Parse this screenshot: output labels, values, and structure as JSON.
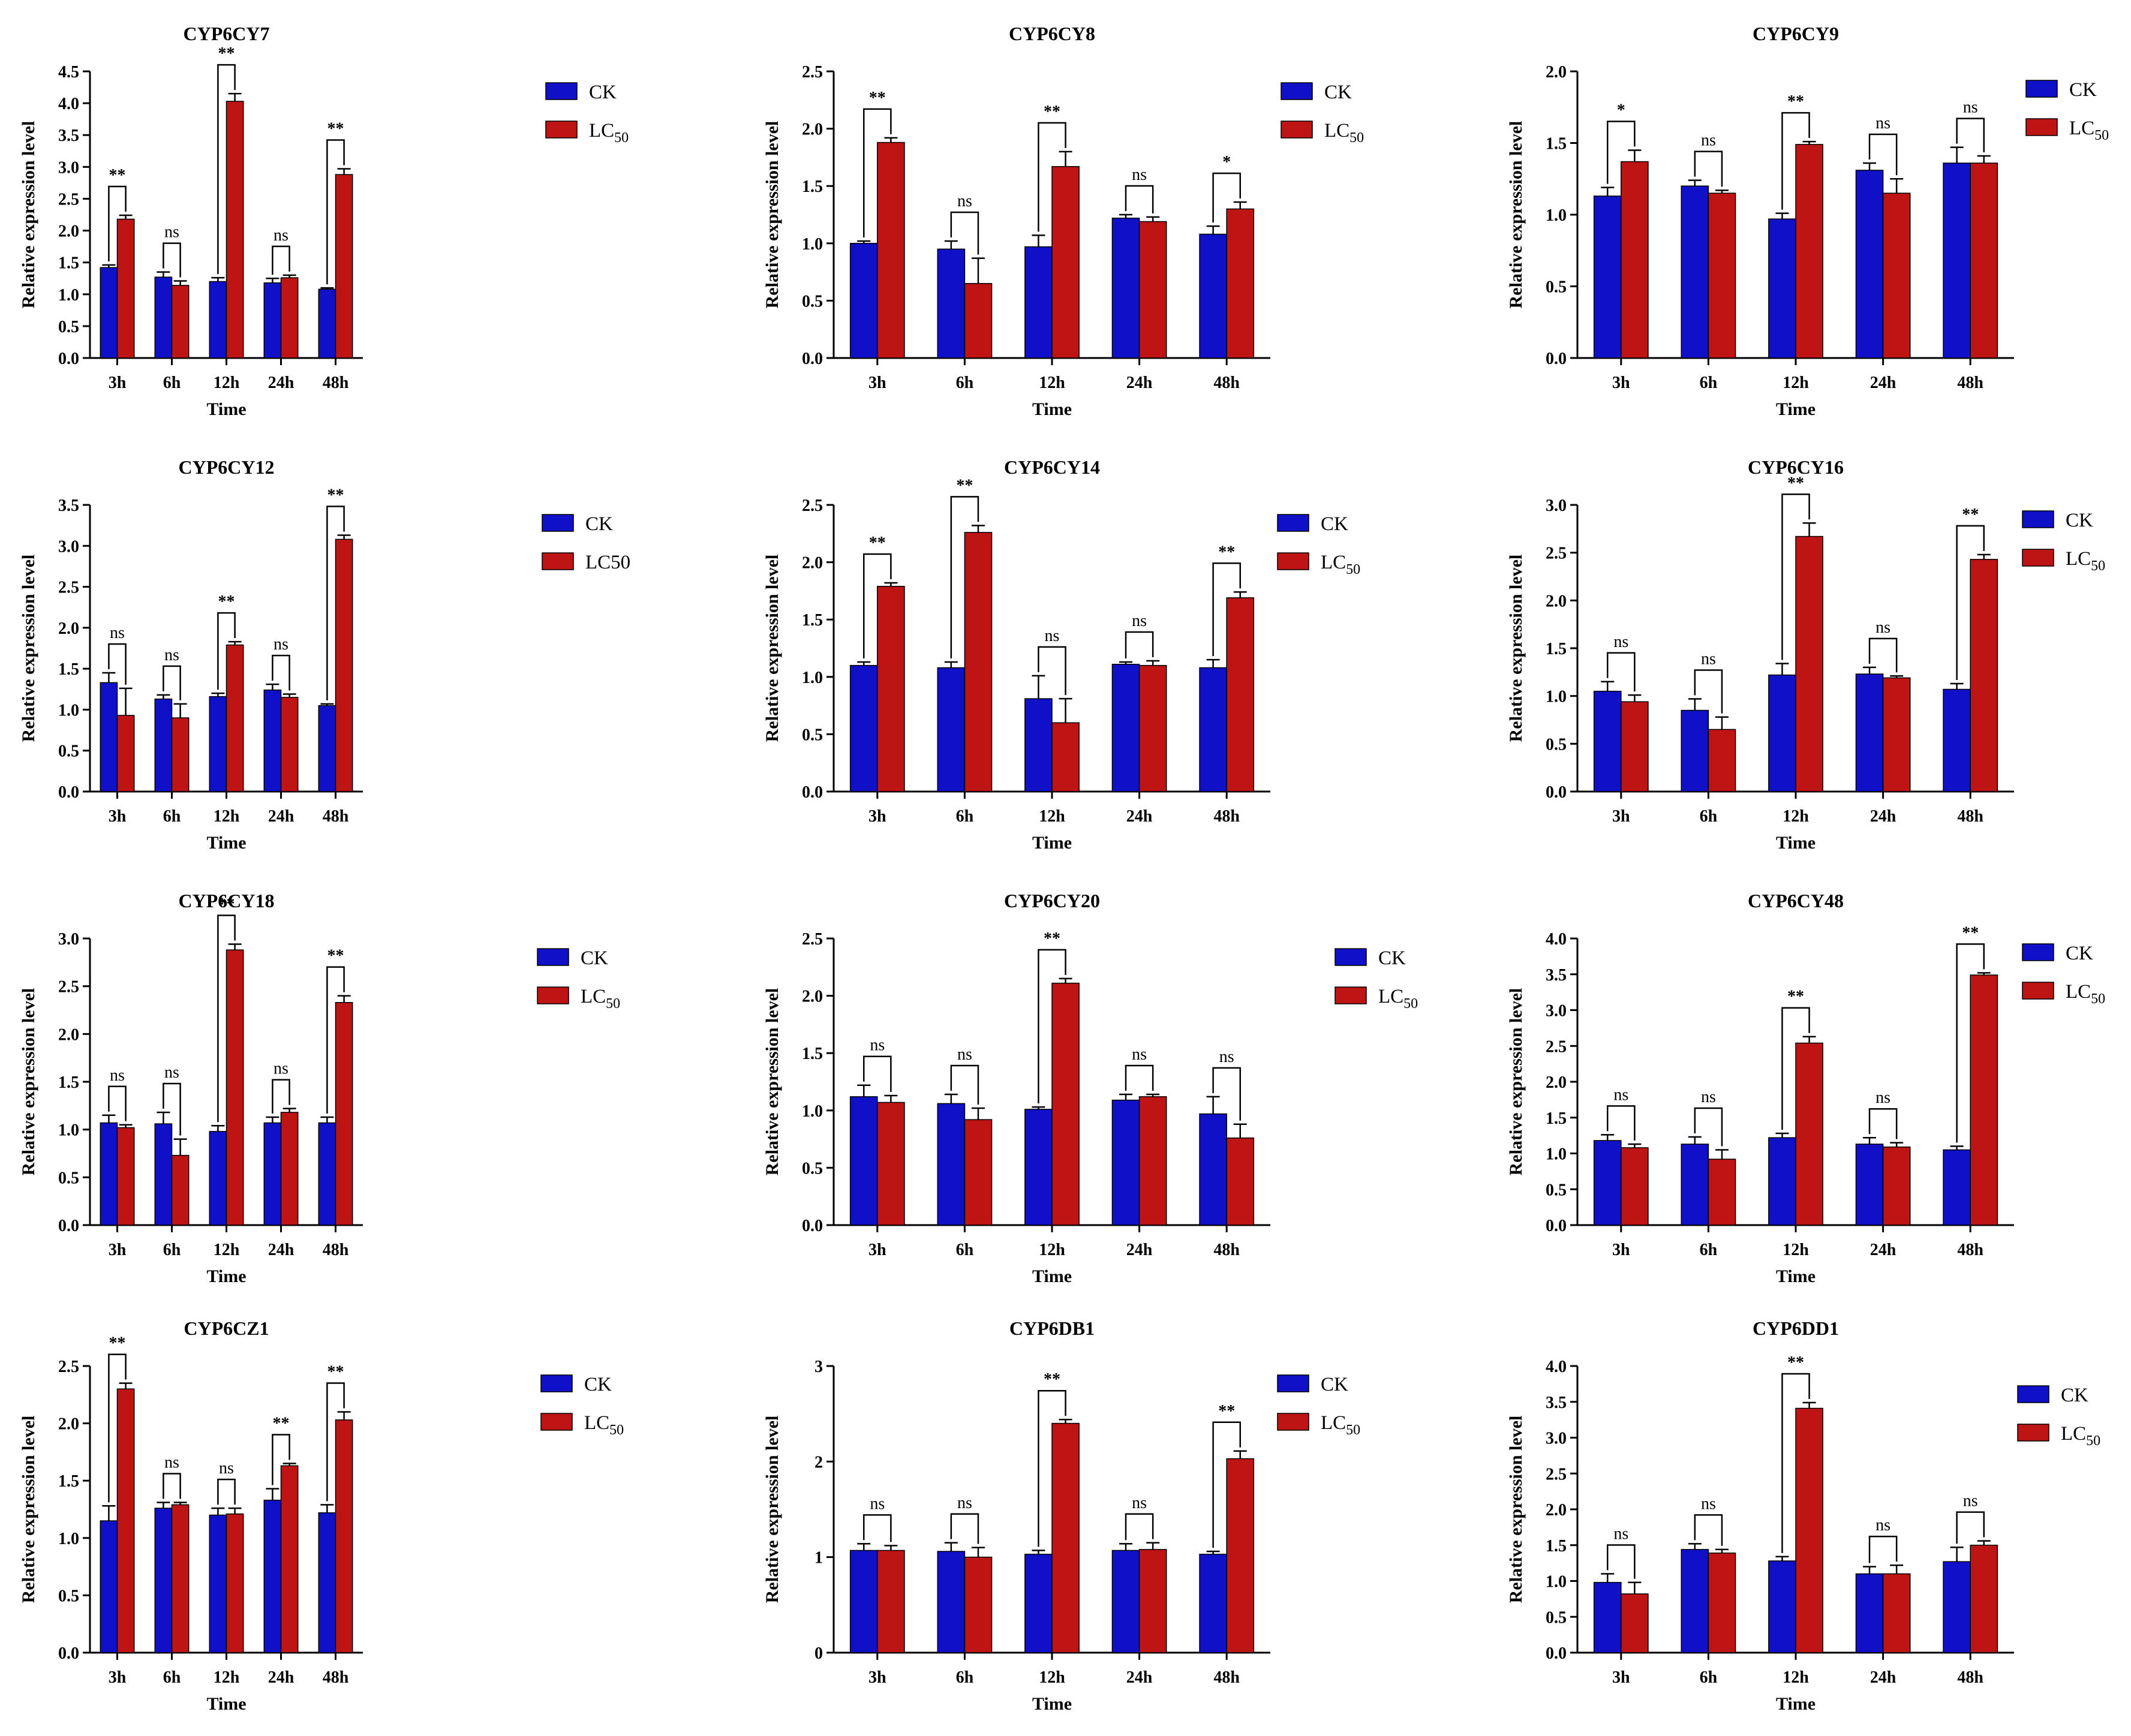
{
  "colors": {
    "ck": "#1010C8",
    "lc50": "#BE1414",
    "axis": "#000000"
  },
  "chart_data": [
    {
      "type": "bar",
      "title": "CYP6CY7",
      "categories": [
        "3h",
        "6h",
        "12h",
        "24h",
        "48h"
      ],
      "xlabel": "Time",
      "ylabel": "Relative expression level",
      "ylim": [
        0,
        4.5
      ],
      "yticks": [
        "0.0",
        "0.5",
        "1.0",
        "1.5",
        "2.0",
        "2.5",
        "3.0",
        "3.5",
        "4.0",
        "4.5"
      ],
      "legend_labels": [
        "CK",
        "LC"
      ],
      "legend_sub": "50",
      "series": [
        {
          "name": "CK",
          "values": [
            1.42,
            1.27,
            1.2,
            1.18,
            1.08
          ],
          "errors": [
            0.04,
            0.08,
            0.06,
            0.07,
            0.02
          ]
        },
        {
          "name": "LC50",
          "values": [
            2.18,
            1.14,
            4.03,
            1.26,
            2.88
          ],
          "errors": [
            0.06,
            0.07,
            0.12,
            0.04,
            0.09
          ]
        }
      ],
      "significance": [
        "**",
        "ns",
        "**",
        "ns",
        "**"
      ]
    },
    {
      "type": "bar",
      "title": "CYP6CY8",
      "categories": [
        "3h",
        "6h",
        "12h",
        "24h",
        "48h"
      ],
      "xlabel": "Time",
      "ylabel": "Relative expression level",
      "ylim": [
        0,
        2.5
      ],
      "yticks": [
        "0.0",
        "0.5",
        "1.0",
        "1.5",
        "2.0",
        "2.5"
      ],
      "legend_labels": [
        "CK",
        "LC"
      ],
      "legend_sub": "50",
      "series": [
        {
          "name": "CK",
          "values": [
            1.0,
            0.95,
            0.97,
            1.22,
            1.08
          ],
          "errors": [
            0.02,
            0.07,
            0.1,
            0.03,
            0.07
          ]
        },
        {
          "name": "LC50",
          "values": [
            1.88,
            0.65,
            1.67,
            1.19,
            1.3
          ],
          "errors": [
            0.04,
            0.22,
            0.13,
            0.04,
            0.06
          ]
        }
      ],
      "significance": [
        "**",
        "ns",
        "**",
        "ns",
        "*"
      ]
    },
    {
      "type": "bar",
      "title": "CYP6CY9",
      "categories": [
        "3h",
        "6h",
        "12h",
        "24h",
        "48h"
      ],
      "xlabel": "Time",
      "ylabel": "Relative expression level",
      "ylim": [
        0,
        2.0
      ],
      "yticks": [
        "0.0",
        "0.5",
        "1.0",
        "1.5",
        "2.0"
      ],
      "legend_labels": [
        "CK",
        "LC"
      ],
      "legend_sub": "50",
      "series": [
        {
          "name": "CK",
          "values": [
            1.13,
            1.2,
            0.97,
            1.31,
            1.36
          ],
          "errors": [
            0.06,
            0.04,
            0.04,
            0.05,
            0.11
          ]
        },
        {
          "name": "LC50",
          "values": [
            1.37,
            1.15,
            1.49,
            1.15,
            1.36
          ],
          "errors": [
            0.08,
            0.02,
            0.02,
            0.1,
            0.05
          ]
        }
      ],
      "significance": [
        "*",
        "ns",
        "**",
        "ns",
        "ns"
      ]
    },
    {
      "type": "bar",
      "title": "CYP6CY12",
      "categories": [
        "3h",
        "6h",
        "12h",
        "24h",
        "48h"
      ],
      "xlabel": "Time",
      "ylabel": "Relative expression level",
      "ylim": [
        0,
        3.5
      ],
      "yticks": [
        "0.0",
        "0.5",
        "1.0",
        "1.5",
        "2.0",
        "2.5",
        "3.0",
        "3.5"
      ],
      "legend_labels": [
        "CK",
        "LC50"
      ],
      "legend_sub": "",
      "series": [
        {
          "name": "CK",
          "values": [
            1.33,
            1.13,
            1.16,
            1.24,
            1.05
          ],
          "errors": [
            0.12,
            0.05,
            0.04,
            0.07,
            0.02
          ]
        },
        {
          "name": "LC50",
          "values": [
            0.93,
            0.9,
            1.79,
            1.15,
            3.08
          ],
          "errors": [
            0.33,
            0.17,
            0.04,
            0.04,
            0.05
          ]
        }
      ],
      "significance": [
        "ns",
        "ns",
        "**",
        "ns",
        "**"
      ]
    },
    {
      "type": "bar",
      "title": "CYP6CY14",
      "categories": [
        "3h",
        "6h",
        "12h",
        "24h",
        "48h"
      ],
      "xlabel": "Time",
      "ylabel": "Relative expression level",
      "ylim": [
        0,
        2.5
      ],
      "yticks": [
        "0.0",
        "0.5",
        "1.0",
        "1.5",
        "2.0",
        "2.5"
      ],
      "legend_labels": [
        "CK",
        "LC"
      ],
      "legend_sub": "50",
      "series": [
        {
          "name": "CK",
          "values": [
            1.1,
            1.08,
            0.81,
            1.11,
            1.08
          ],
          "errors": [
            0.03,
            0.05,
            0.2,
            0.02,
            0.07
          ]
        },
        {
          "name": "LC50",
          "values": [
            1.79,
            2.26,
            0.6,
            1.1,
            1.69
          ],
          "errors": [
            0.03,
            0.06,
            0.21,
            0.04,
            0.05
          ]
        }
      ],
      "significance": [
        "**",
        "**",
        "ns",
        "ns",
        "**"
      ]
    },
    {
      "type": "bar",
      "title": "CYP6CY16",
      "categories": [
        "3h",
        "6h",
        "12h",
        "24h",
        "48h"
      ],
      "xlabel": "Time",
      "ylabel": "Relative expression level",
      "ylim": [
        0,
        3.0
      ],
      "yticks": [
        "0.0",
        "0.5",
        "1.0",
        "1.5",
        "2.0",
        "2.5",
        "3.0"
      ],
      "legend_labels": [
        "CK",
        "LC"
      ],
      "legend_sub": "50",
      "series": [
        {
          "name": "CK",
          "values": [
            1.05,
            0.85,
            1.22,
            1.23,
            1.07
          ],
          "errors": [
            0.1,
            0.12,
            0.12,
            0.07,
            0.06
          ]
        },
        {
          "name": "LC50",
          "values": [
            0.94,
            0.65,
            2.67,
            1.19,
            2.43
          ],
          "errors": [
            0.07,
            0.13,
            0.14,
            0.02,
            0.05
          ]
        }
      ],
      "significance": [
        "ns",
        "ns",
        "**",
        "ns",
        "**"
      ]
    },
    {
      "type": "bar",
      "title": "CYP6CY18",
      "categories": [
        "3h",
        "6h",
        "12h",
        "24h",
        "48h"
      ],
      "xlabel": "Time",
      "ylabel": "Relative expression level",
      "ylim": [
        0,
        3.0
      ],
      "yticks": [
        "0.0",
        "0.5",
        "1.0",
        "1.5",
        "2.0",
        "2.5",
        "3.0"
      ],
      "legend_labels": [
        "CK",
        "LC"
      ],
      "legend_sub": "50",
      "series": [
        {
          "name": "CK",
          "values": [
            1.07,
            1.06,
            0.98,
            1.07,
            1.07
          ],
          "errors": [
            0.08,
            0.12,
            0.06,
            0.06,
            0.06
          ]
        },
        {
          "name": "LC50",
          "values": [
            1.02,
            0.73,
            2.88,
            1.18,
            2.33
          ],
          "errors": [
            0.03,
            0.17,
            0.06,
            0.04,
            0.07
          ]
        }
      ],
      "significance": [
        "ns",
        "ns",
        "**",
        "ns",
        "**"
      ]
    },
    {
      "type": "bar",
      "title": "CYP6CY20",
      "categories": [
        "3h",
        "6h",
        "12h",
        "24h",
        "48h"
      ],
      "xlabel": "Time",
      "ylabel": "Relative expression level",
      "ylim": [
        0,
        2.5
      ],
      "yticks": [
        "0.0",
        "0.5",
        "1.0",
        "1.5",
        "2.0",
        "2.5"
      ],
      "legend_labels": [
        "CK",
        "LC"
      ],
      "legend_sub": "50",
      "series": [
        {
          "name": "CK",
          "values": [
            1.12,
            1.06,
            1.01,
            1.09,
            0.97
          ],
          "errors": [
            0.1,
            0.08,
            0.02,
            0.05,
            0.15
          ]
        },
        {
          "name": "LC50",
          "values": [
            1.07,
            0.92,
            2.11,
            1.12,
            0.76
          ],
          "errors": [
            0.06,
            0.1,
            0.04,
            0.02,
            0.12
          ]
        }
      ],
      "significance": [
        "ns",
        "ns",
        "**",
        "ns",
        "ns"
      ]
    },
    {
      "type": "bar",
      "title": "CYP6CY48",
      "categories": [
        "3h",
        "6h",
        "12h",
        "24h",
        "48h"
      ],
      "xlabel": "Time",
      "ylabel": "Relative expression level",
      "ylim": [
        0,
        4.0
      ],
      "yticks": [
        "0.0",
        "0.5",
        "1.0",
        "1.5",
        "2.0",
        "2.5",
        "3.0",
        "3.5",
        "4.0"
      ],
      "legend_labels": [
        "CK",
        "LC"
      ],
      "legend_sub": "50",
      "series": [
        {
          "name": "CK",
          "values": [
            1.18,
            1.13,
            1.22,
            1.13,
            1.05
          ],
          "errors": [
            0.08,
            0.1,
            0.06,
            0.09,
            0.05
          ]
        },
        {
          "name": "LC50",
          "values": [
            1.08,
            0.92,
            2.54,
            1.09,
            3.49
          ],
          "errors": [
            0.05,
            0.13,
            0.09,
            0.06,
            0.03
          ]
        }
      ],
      "significance": [
        "ns",
        "ns",
        "**",
        "ns",
        "**"
      ]
    },
    {
      "type": "bar",
      "title": "CYP6CZ1",
      "categories": [
        "3h",
        "6h",
        "12h",
        "24h",
        "48h"
      ],
      "xlabel": "Time",
      "ylabel": "Relative expression level",
      "ylim": [
        0,
        2.5
      ],
      "yticks": [
        "0.0",
        "0.5",
        "1.0",
        "1.5",
        "2.0",
        "2.5"
      ],
      "legend_labels": [
        "CK",
        "LC"
      ],
      "legend_sub": "50",
      "series": [
        {
          "name": "CK",
          "values": [
            1.15,
            1.26,
            1.2,
            1.33,
            1.22
          ],
          "errors": [
            0.13,
            0.05,
            0.06,
            0.1,
            0.07
          ]
        },
        {
          "name": "LC50",
          "values": [
            2.3,
            1.29,
            1.21,
            1.63,
            2.03
          ],
          "errors": [
            0.05,
            0.02,
            0.05,
            0.02,
            0.07
          ]
        }
      ],
      "significance": [
        "**",
        "ns",
        "ns",
        "**",
        "**"
      ]
    },
    {
      "type": "bar",
      "title": "CYP6DB1",
      "categories": [
        "3h",
        "6h",
        "12h",
        "24h",
        "48h"
      ],
      "xlabel": "Time",
      "ylabel": "Relative expression level",
      "ylim": [
        0,
        3
      ],
      "yticks": [
        "0",
        "1",
        "2",
        "3"
      ],
      "legend_labels": [
        "CK",
        "LC"
      ],
      "legend_sub": "50",
      "series": [
        {
          "name": "CK",
          "values": [
            1.07,
            1.06,
            1.03,
            1.07,
            1.03
          ],
          "errors": [
            0.07,
            0.09,
            0.04,
            0.07,
            0.03
          ]
        },
        {
          "name": "LC50",
          "values": [
            1.07,
            1.0,
            2.4,
            1.08,
            2.03
          ],
          "errors": [
            0.05,
            0.1,
            0.04,
            0.07,
            0.08
          ]
        }
      ],
      "significance": [
        "ns",
        "ns",
        "**",
        "ns",
        "**"
      ]
    },
    {
      "type": "bar",
      "title": "CYP6DD1",
      "categories": [
        "3h",
        "6h",
        "12h",
        "24h",
        "48h"
      ],
      "xlabel": "Time",
      "ylabel": "Relative expression level",
      "ylim": [
        0,
        4.0
      ],
      "yticks": [
        "0.0",
        "0.5",
        "1.0",
        "1.5",
        "2.0",
        "2.5",
        "3.0",
        "3.5",
        "4.0"
      ],
      "legend_labels": [
        "CK",
        "LC"
      ],
      "legend_sub": "50",
      "series": [
        {
          "name": "CK",
          "values": [
            0.98,
            1.44,
            1.28,
            1.1,
            1.27
          ],
          "errors": [
            0.12,
            0.08,
            0.06,
            0.1,
            0.2
          ]
        },
        {
          "name": "LC50",
          "values": [
            0.82,
            1.39,
            3.41,
            1.1,
            1.5
          ],
          "errors": [
            0.16,
            0.05,
            0.08,
            0.12,
            0.06
          ]
        }
      ],
      "significance": [
        "ns",
        "ns",
        "**",
        "ns",
        "ns"
      ]
    }
  ]
}
